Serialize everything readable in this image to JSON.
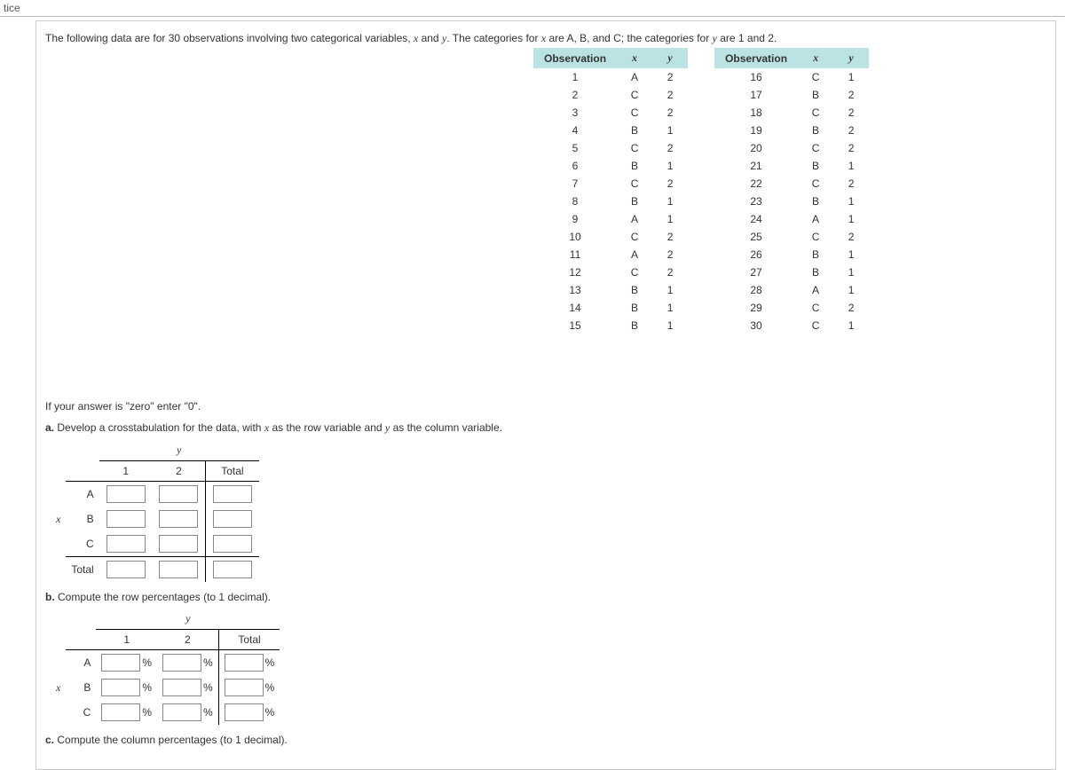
{
  "tab_label": "tice",
  "intro_parts": {
    "p1": "The following data are for ",
    "obs_count": "30",
    "p2": " observations involving two categorical variables, ",
    "var_x": "x",
    "p3": " and ",
    "var_y": "y",
    "p4": ". The categories for ",
    "p5": " are A, B, and C; the categories for ",
    "p6": " are ",
    "cat_y1": "1",
    "p7": " and ",
    "cat_y2": "2",
    "p8": "."
  },
  "table_headers": {
    "obs": "Observation",
    "x": "x",
    "y": "y"
  },
  "observations_left": [
    {
      "n": "1",
      "x": "A",
      "y": "2"
    },
    {
      "n": "2",
      "x": "C",
      "y": "2"
    },
    {
      "n": "3",
      "x": "C",
      "y": "2"
    },
    {
      "n": "4",
      "x": "B",
      "y": "1"
    },
    {
      "n": "5",
      "x": "C",
      "y": "2"
    },
    {
      "n": "6",
      "x": "B",
      "y": "1"
    },
    {
      "n": "7",
      "x": "C",
      "y": "2"
    },
    {
      "n": "8",
      "x": "B",
      "y": "1"
    },
    {
      "n": "9",
      "x": "A",
      "y": "1"
    },
    {
      "n": "10",
      "x": "C",
      "y": "2"
    },
    {
      "n": "11",
      "x": "A",
      "y": "2"
    },
    {
      "n": "12",
      "x": "C",
      "y": "2"
    },
    {
      "n": "13",
      "x": "B",
      "y": "1"
    },
    {
      "n": "14",
      "x": "B",
      "y": "1"
    },
    {
      "n": "15",
      "x": "B",
      "y": "1"
    }
  ],
  "observations_right": [
    {
      "n": "16",
      "x": "C",
      "y": "1"
    },
    {
      "n": "17",
      "x": "B",
      "y": "2"
    },
    {
      "n": "18",
      "x": "C",
      "y": "2"
    },
    {
      "n": "19",
      "x": "B",
      "y": "2"
    },
    {
      "n": "20",
      "x": "C",
      "y": "2"
    },
    {
      "n": "21",
      "x": "B",
      "y": "1"
    },
    {
      "n": "22",
      "x": "C",
      "y": "2"
    },
    {
      "n": "23",
      "x": "B",
      "y": "1"
    },
    {
      "n": "24",
      "x": "A",
      "y": "1"
    },
    {
      "n": "25",
      "x": "C",
      "y": "2"
    },
    {
      "n": "26",
      "x": "B",
      "y": "1"
    },
    {
      "n": "27",
      "x": "B",
      "y": "1"
    },
    {
      "n": "28",
      "x": "A",
      "y": "1"
    },
    {
      "n": "29",
      "x": "C",
      "y": "2"
    },
    {
      "n": "30",
      "x": "C",
      "y": "1"
    }
  ],
  "zero_note": "If your answer is \"zero\" enter \"0\".",
  "part_a": {
    "label": "a.",
    "text_1": " Develop a crosstabulation for the data, with ",
    "text_2": " as the row variable and ",
    "text_3": " as the column variable."
  },
  "part_b": {
    "label": "b.",
    "text": " Compute the row percentages (to 1 decimal)."
  },
  "part_c": {
    "label": "c.",
    "text": " Compute the column percentages (to 1 decimal)."
  },
  "cross_labels": {
    "y": "y",
    "x": "x",
    "col1": "1",
    "col2": "2",
    "total": "Total",
    "rowA": "A",
    "rowB": "B",
    "rowC": "C",
    "pct": "%"
  },
  "colors": {
    "header_bg": "#bce3e4",
    "border": "#cccccc",
    "text": "#333333"
  }
}
